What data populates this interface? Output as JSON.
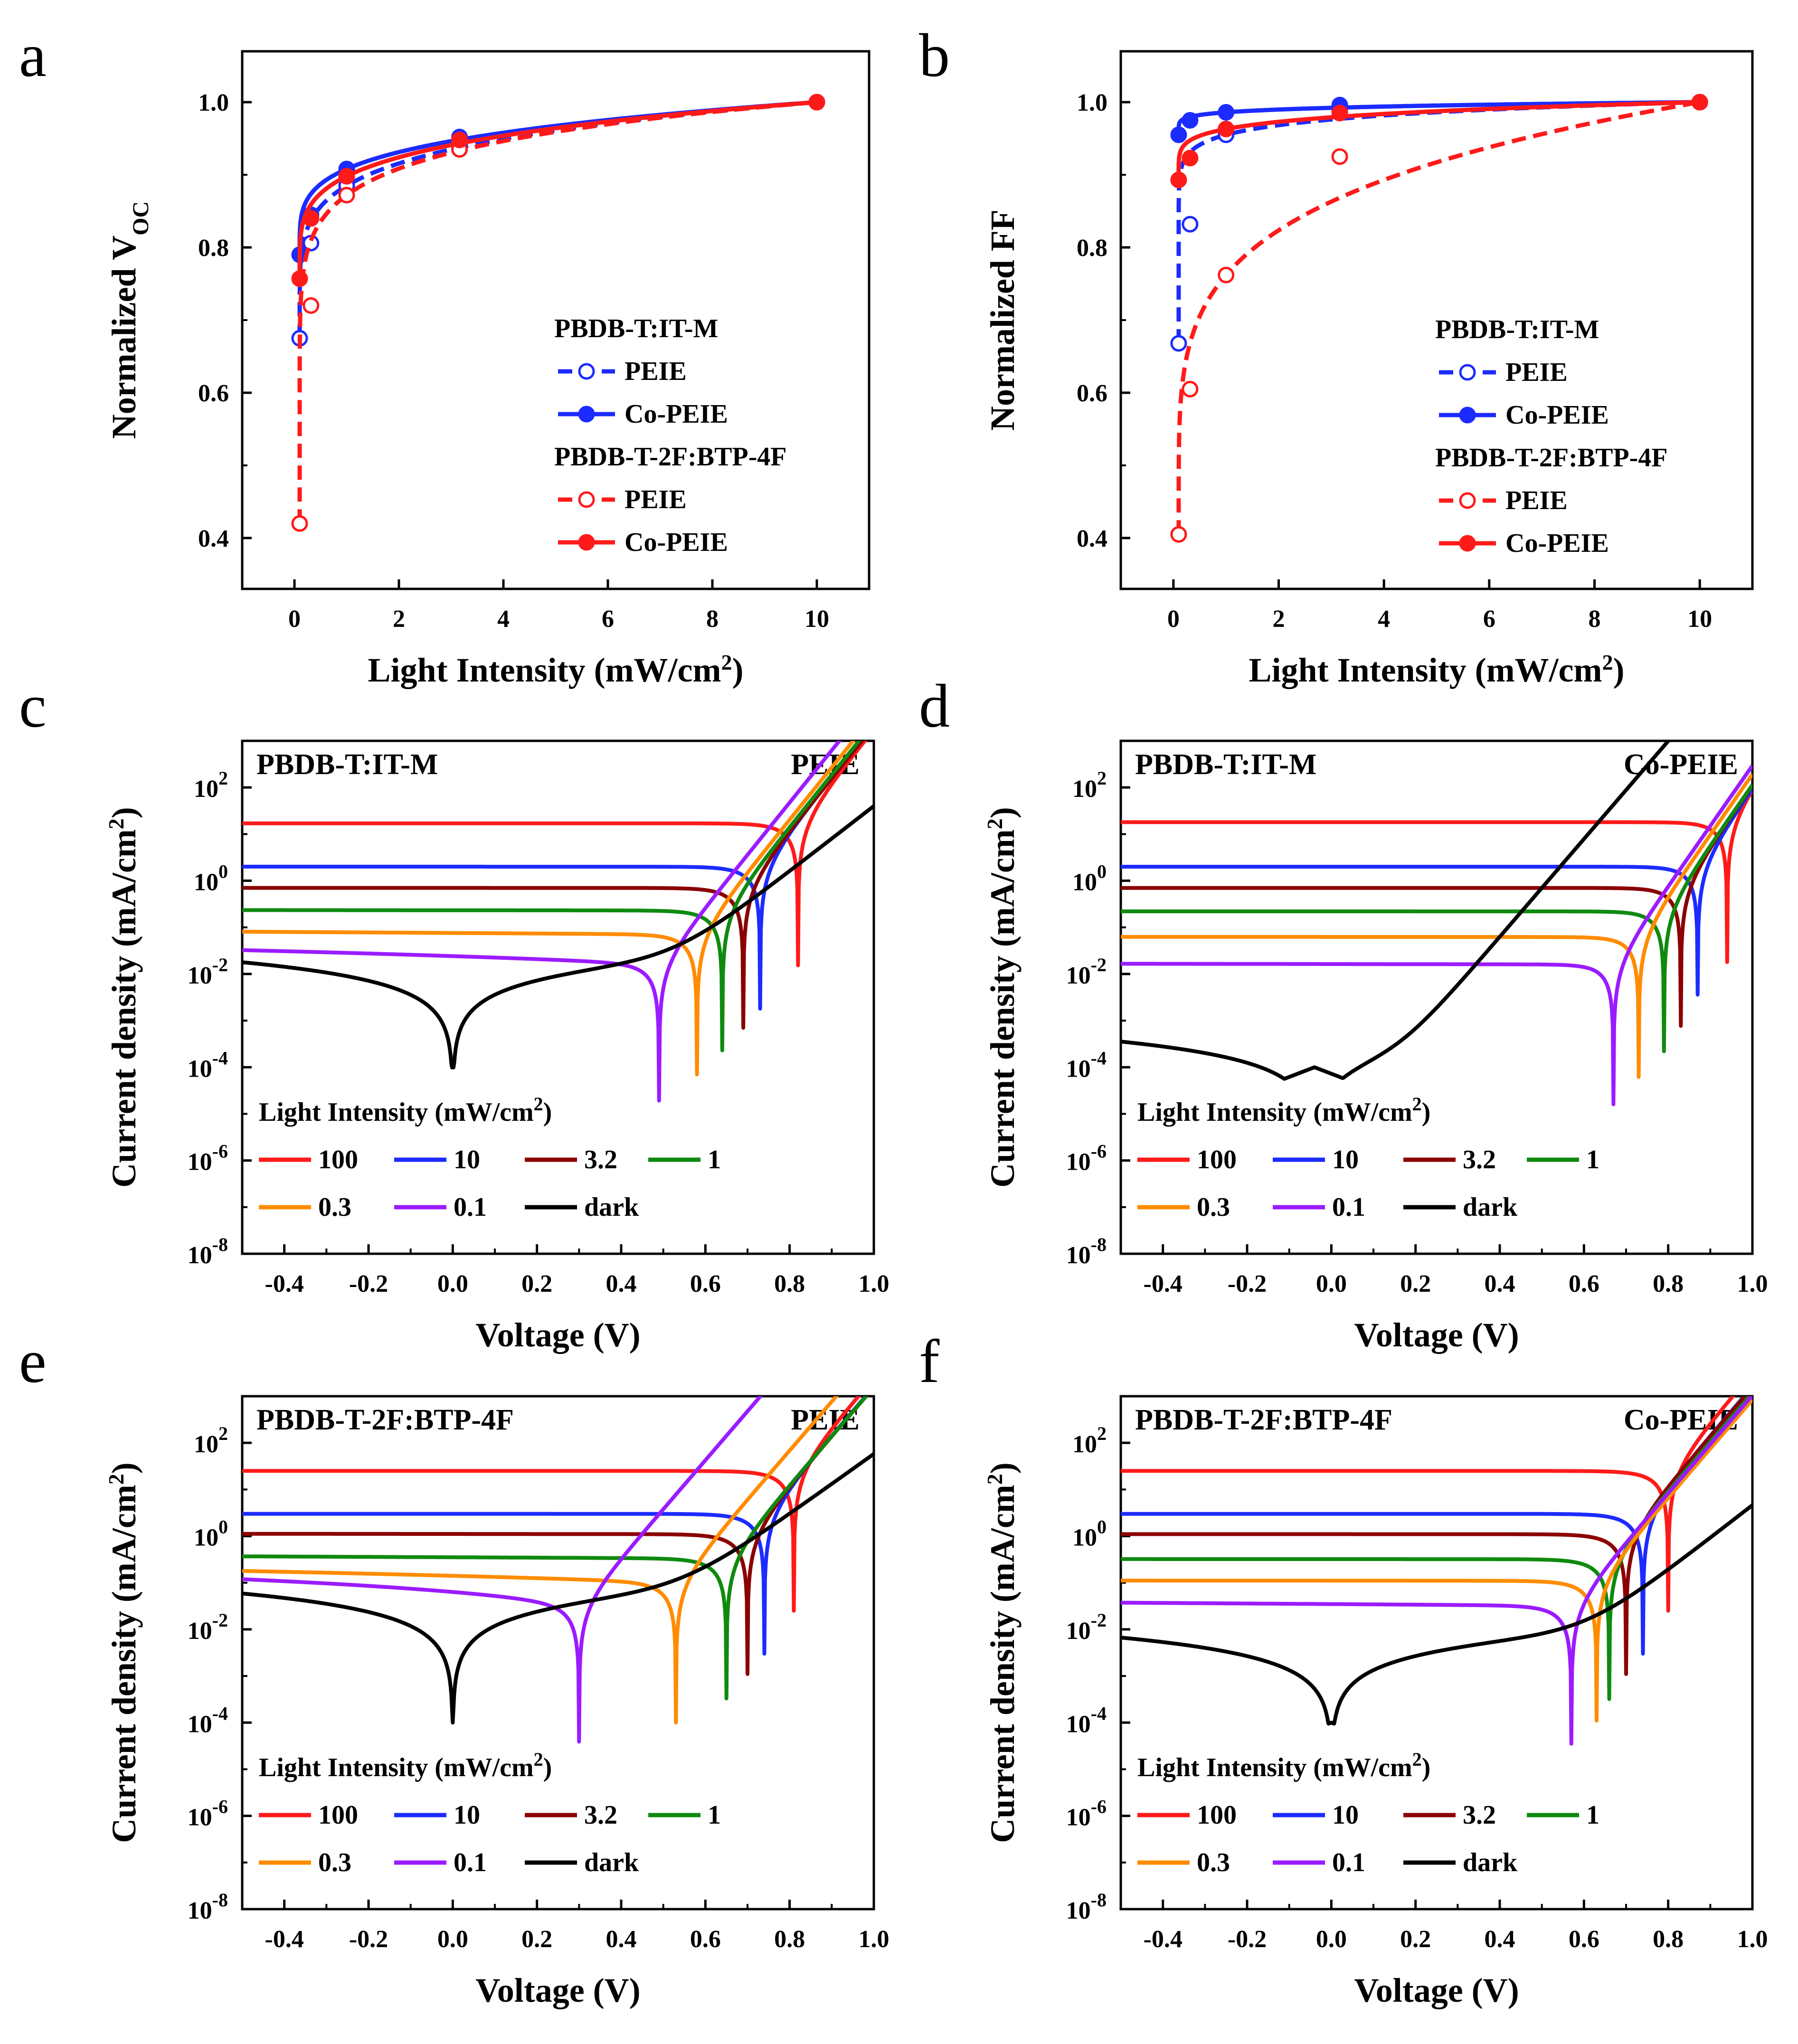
{
  "charts": [
    {
      "id": "a",
      "kind": "norm",
      "type": "line",
      "panel_letter": "a",
      "xlabel": "Light Intensity (mW/cm",
      "xlabel_sup": "2",
      "xlabel_end": ")",
      "ylabel": "Normalized V",
      "ylabel_sub": "OC",
      "xlim": [
        -1,
        11
      ],
      "ylim": [
        0.33,
        1.07
      ],
      "xticks": [
        0,
        2,
        4,
        6,
        8,
        10
      ],
      "yticks": [
        0.4,
        0.6,
        0.8,
        1.0
      ],
      "yticklabels": [
        "0.4",
        "0.6",
        "0.8",
        "1.0"
      ],
      "legend": {
        "groups": [
          {
            "title": "PBDB-T:IT-M",
            "entries": [
              {
                "label": "PEIE",
                "series": 0
              },
              {
                "label": "Co-PEIE",
                "series": 1
              }
            ]
          },
          {
            "title": "PBDB-T-2F:BTP-4F",
            "entries": [
              {
                "label": "PEIE",
                "series": 2
              },
              {
                "label": "Co-PEIE",
                "series": 3
              }
            ]
          }
        ]
      },
      "series": [
        {
          "name": "PBDB-T:IT-M PEIE",
          "color": "#1c2bff",
          "dashed": true,
          "filled": false,
          "x": [
            0.1,
            0.316,
            1,
            3.16,
            10
          ],
          "y": [
            0.675,
            0.806,
            0.885,
            0.935,
            1.0
          ]
        },
        {
          "name": "PBDB-T:IT-M Co-PEIE",
          "color": "#1c2bff",
          "dashed": false,
          "filled": true,
          "x": [
            0.1,
            0.316,
            1,
            3.16,
            10
          ],
          "y": [
            0.79,
            0.845,
            0.908,
            0.952,
            1.0
          ]
        },
        {
          "name": "PBDB-T-2F:BTP-4F PEIE",
          "color": "#ff1a1a",
          "dashed": true,
          "filled": false,
          "x": [
            0.1,
            0.316,
            1,
            3.16,
            10
          ],
          "y": [
            0.42,
            0.72,
            0.872,
            0.935,
            1.0
          ]
        },
        {
          "name": "PBDB-T-2F:BTP-4F Co-PEIE",
          "color": "#ff1a1a",
          "dashed": false,
          "filled": true,
          "x": [
            0.1,
            0.316,
            1,
            3.16,
            10
          ],
          "y": [
            0.757,
            0.84,
            0.898,
            0.948,
            1.0
          ]
        }
      ]
    },
    {
      "id": "b",
      "kind": "norm",
      "type": "line",
      "panel_letter": "b",
      "xlabel": "Light Intensity (mW/cm",
      "xlabel_sup": "2",
      "xlabel_end": ")",
      "ylabel": "Normalized FF",
      "ylabel_sub": "",
      "xlim": [
        -1,
        11
      ],
      "ylim": [
        0.33,
        1.07
      ],
      "xticks": [
        0,
        2,
        4,
        6,
        8,
        10
      ],
      "yticks": [
        0.4,
        0.6,
        0.8,
        1.0
      ],
      "yticklabels": [
        "0.4",
        "0.6",
        "0.8",
        "1.0"
      ],
      "legend": {
        "groups": [
          {
            "title": "PBDB-T:IT-M",
            "entries": [
              {
                "label": "PEIE",
                "series": 0
              },
              {
                "label": "Co-PEIE",
                "series": 1
              }
            ]
          },
          {
            "title": "PBDB-T-2F:BTP-4F",
            "entries": [
              {
                "label": "PEIE",
                "series": 2
              },
              {
                "label": "Co-PEIE",
                "series": 3
              }
            ]
          }
        ]
      },
      "series": [
        {
          "name": "PBDB-T:IT-M PEIE",
          "color": "#1c2bff",
          "dashed": true,
          "filled": false,
          "x": [
            0.1,
            0.316,
            1,
            3.16,
            10
          ],
          "y": [
            0.668,
            0.832,
            0.955,
            0.99,
            1.0
          ]
        },
        {
          "name": "PBDB-T:IT-M Co-PEIE",
          "color": "#1c2bff",
          "dashed": false,
          "filled": true,
          "x": [
            0.1,
            0.316,
            1,
            3.16,
            10
          ],
          "y": [
            0.955,
            0.975,
            0.986,
            0.996,
            1.0
          ]
        },
        {
          "name": "PBDB-T-2F:BTP-4F PEIE",
          "color": "#ff1a1a",
          "dashed": true,
          "filled": false,
          "x": [
            0.1,
            0.316,
            1,
            3.16,
            10
          ],
          "y": [
            0.405,
            0.605,
            0.762,
            0.925,
            1.0
          ]
        },
        {
          "name": "PBDB-T-2F:BTP-4F Co-PEIE",
          "color": "#ff1a1a",
          "dashed": false,
          "filled": true,
          "x": [
            0.1,
            0.316,
            1,
            3.16,
            10
          ],
          "y": [
            0.893,
            0.923,
            0.963,
            0.985,
            1.0
          ]
        }
      ]
    },
    {
      "id": "c",
      "kind": "jv",
      "type": "line",
      "panel_letter": "c",
      "material": "PBDB-T:IT-M",
      "etl": "PEIE",
      "xlabel": "Voltage (V)",
      "ylabel": "Current density (mA/cm",
      "ylabel_sup": "2",
      "ylabel_end": ")",
      "xlim": [
        -0.5,
        1.0
      ],
      "ylog_range": [
        -8,
        3
      ],
      "xticks": [
        -0.4,
        -0.2,
        0.0,
        0.2,
        0.4,
        0.6,
        0.8,
        1.0
      ],
      "xticklabels": [
        "-0.4",
        "-0.2",
        "0.0",
        "0.2",
        "0.4",
        "0.6",
        "0.8",
        "1.0"
      ],
      "ytick_exponents": [
        "-8",
        "-6",
        "-4",
        "-2",
        "0",
        "2"
      ],
      "legend_title": "Light Intensity (mW/cm",
      "legend_title_sup": "2",
      "legend_title_end": ")",
      "series": [
        {
          "name": "100",
          "color": "#ff1a1a",
          "jsc": 17,
          "voc": 0.82,
          "n": 1.5,
          "j0": 2.2e-12,
          "rsh": 350,
          "dip": 0.9
        },
        {
          "name": "10",
          "color": "#1c2bff",
          "jsc": 2.0,
          "voc": 0.73,
          "n": 1.5,
          "j0": 2.2e-12,
          "rsh": 350,
          "dip": 0.9
        },
        {
          "name": "3.2",
          "color": "#8b0000",
          "jsc": 0.7,
          "voc": 0.69,
          "n": 1.5,
          "j0": 2.2e-12,
          "rsh": 350,
          "dip": 1.0
        },
        {
          "name": "1",
          "color": "#0f8a0f",
          "jsc": 0.23,
          "voc": 0.64,
          "n": 1.5,
          "j0": 2.2e-12,
          "rsh": 250,
          "dip": 1.0
        },
        {
          "name": "0.3",
          "color": "#ff8c00",
          "jsc": 0.07,
          "voc": 0.58,
          "n": 1.5,
          "j0": 2.2e-12,
          "rsh": 100,
          "dip": 1.0
        },
        {
          "name": "0.1",
          "color": "#9b1bff",
          "jsc": 0.016,
          "voc": 0.49,
          "n": 1.5,
          "j0": 2.2e-12,
          "rsh": 60,
          "dip": 1.2
        },
        {
          "name": "dark",
          "color": "#000000",
          "jsc": 0,
          "voc": 0.0,
          "n": 2.4,
          "j0": 4e-06,
          "rsh": 28,
          "dip": 1.0
        }
      ]
    },
    {
      "id": "d",
      "kind": "jv",
      "type": "line",
      "panel_letter": "d",
      "material": "PBDB-T:IT-M",
      "etl": "Co-PEIE",
      "xlabel": "Voltage (V)",
      "ylabel": "Current density (mA/cm",
      "ylabel_sup": "2",
      "ylabel_end": ")",
      "xlim": [
        -0.5,
        1.0
      ],
      "ylog_range": [
        -8,
        3
      ],
      "xticks": [
        -0.4,
        -0.2,
        0.0,
        0.2,
        0.4,
        0.6,
        0.8,
        1.0
      ],
      "xticklabels": [
        "-0.4",
        "-0.2",
        "0.0",
        "0.2",
        "0.4",
        "0.6",
        "0.8",
        "1.0"
      ],
      "ytick_exponents": [
        "-8",
        "-6",
        "-4",
        "-2",
        "0",
        "2"
      ],
      "legend_title": "Light Intensity (mW/cm",
      "legend_title_sup": "2",
      "legend_title_end": ")",
      "series": [
        {
          "name": "100",
          "color": "#ff1a1a",
          "jsc": 18,
          "voc": 0.94,
          "n": 1.3,
          "j0": 2e-15,
          "rsh": 2000,
          "dip": 1.0
        },
        {
          "name": "10",
          "color": "#1c2bff",
          "jsc": 2.0,
          "voc": 0.87,
          "n": 1.3,
          "j0": 2e-15,
          "rsh": 2000,
          "dip": 1.8
        },
        {
          "name": "3.2",
          "color": "#8b0000",
          "jsc": 0.7,
          "voc": 0.83,
          "n": 1.3,
          "j0": 2e-15,
          "rsh": 2000,
          "dip": 1.1
        },
        {
          "name": "1",
          "color": "#0f8a0f",
          "jsc": 0.22,
          "voc": 0.79,
          "n": 1.3,
          "j0": 2e-15,
          "rsh": 2000,
          "dip": 1.0
        },
        {
          "name": "0.3",
          "color": "#ff8c00",
          "jsc": 0.062,
          "voc": 0.73,
          "n": 1.3,
          "j0": 2e-15,
          "rsh": 2000,
          "dip": 1.0
        },
        {
          "name": "0.1",
          "color": "#9b1bff",
          "jsc": 0.016,
          "voc": 0.67,
          "n": 1.3,
          "j0": 2e-15,
          "rsh": 2000,
          "dip": 1.0
        },
        {
          "name": "dark",
          "color": "#000000",
          "jsc": 0,
          "voc": -0.04,
          "n": 1.6,
          "j0": 1.5e-06,
          "rsh": 1300,
          "dip": 1.0
        }
      ]
    },
    {
      "id": "e",
      "kind": "jv",
      "type": "line",
      "panel_letter": "e",
      "material": "PBDB-T-2F:BTP-4F",
      "etl": "PEIE",
      "xlabel": "Voltage (V)",
      "ylabel": "Current density (mA/cm",
      "ylabel_sup": "2",
      "ylabel_end": ")",
      "xlim": [
        -0.5,
        1.0
      ],
      "ylog_range": [
        -8,
        3
      ],
      "xticks": [
        -0.4,
        -0.2,
        0.0,
        0.2,
        0.4,
        0.6,
        0.8,
        1.0
      ],
      "xticklabels": [
        "-0.4",
        "-0.2",
        "0.0",
        "0.2",
        "0.4",
        "0.6",
        "0.8",
        "1.0"
      ],
      "ytick_exponents": [
        "-8",
        "-6",
        "-4",
        "-2",
        "0",
        "2"
      ],
      "legend_title": "Light Intensity (mW/cm",
      "legend_title_sup": "2",
      "legend_title_end": ")",
      "series": [
        {
          "name": "100",
          "color": "#ff1a1a",
          "jsc": 25,
          "voc": 0.81,
          "n": 1.6,
          "j0": 3e-11,
          "rsh": 140,
          "dip": 1.0
        },
        {
          "name": "10",
          "color": "#1c2bff",
          "jsc": 3.0,
          "voc": 0.74,
          "n": 1.6,
          "j0": 3e-11,
          "rsh": 140,
          "dip": 1.0
        },
        {
          "name": "3.2",
          "color": "#8b0000",
          "jsc": 1.1,
          "voc": 0.7,
          "n": 1.6,
          "j0": 3e-11,
          "rsh": 60,
          "dip": 1.0
        },
        {
          "name": "1",
          "color": "#0f8a0f",
          "jsc": 0.33,
          "voc": 0.65,
          "n": 1.6,
          "j0": 3e-11,
          "rsh": 30,
          "dip": 1.0
        },
        {
          "name": "0.3",
          "color": "#ff8c00",
          "jsc": 0.1,
          "voc": 0.53,
          "n": 1.6,
          "j0": 3e-11,
          "rsh": 13,
          "dip": 1.0
        },
        {
          "name": "0.1",
          "color": "#9b1bff",
          "jsc": 0.03,
          "voc": 0.3,
          "n": 1.6,
          "j0": 3e-11,
          "rsh": 9,
          "dip": 1.3
        },
        {
          "name": "dark",
          "color": "#000000",
          "jsc": 0,
          "voc": 0.0,
          "n": 2.6,
          "j0": 2e-05,
          "rsh": 8.5,
          "dip": 1.0
        }
      ]
    },
    {
      "id": "f",
      "kind": "jv",
      "type": "line",
      "panel_letter": "f",
      "material": "PBDB-T-2F:BTP-4F",
      "etl": "Co-PEIE",
      "xlabel": "Voltage (V)",
      "ylabel": "Current density (mA/cm",
      "ylabel_sup": "2",
      "ylabel_end": ")",
      "xlim": [
        -0.5,
        1.0
      ],
      "ylog_range": [
        -8,
        3
      ],
      "xticks": [
        -0.4,
        -0.2,
        0.0,
        0.2,
        0.4,
        0.6,
        0.8,
        1.0
      ],
      "xticklabels": [
        "-0.4",
        "-0.2",
        "0.0",
        "0.2",
        "0.4",
        "0.6",
        "0.8",
        "1.0"
      ],
      "ytick_exponents": [
        "-8",
        "-6",
        "-4",
        "-2",
        "0",
        "2"
      ],
      "legend_title": "Light Intensity (mW/cm",
      "legend_title_sup": "2",
      "legend_title_end": ")",
      "series": [
        {
          "name": "100",
          "color": "#ff1a1a",
          "jsc": 25,
          "voc": 0.8,
          "n": 1.6,
          "j0": 2.2e-11,
          "rsh": 800,
          "dip": 1.0
        },
        {
          "name": "10",
          "color": "#1c2bff",
          "jsc": 3.0,
          "voc": 0.74,
          "n": 1.6,
          "j0": 2.2e-11,
          "rsh": 800,
          "dip": 1.0
        },
        {
          "name": "3.2",
          "color": "#8b0000",
          "jsc": 1.1,
          "voc": 0.7,
          "n": 1.6,
          "j0": 2.2e-11,
          "rsh": 800,
          "dip": 1.0
        },
        {
          "name": "1",
          "color": "#0f8a0f",
          "jsc": 0.32,
          "voc": 0.66,
          "n": 1.6,
          "j0": 2.2e-11,
          "rsh": 800,
          "dip": 1.0
        },
        {
          "name": "0.3",
          "color": "#ff8c00",
          "jsc": 0.11,
          "voc": 0.63,
          "n": 1.6,
          "j0": 2.2e-11,
          "rsh": 800,
          "dip": 1.0
        },
        {
          "name": "0.1",
          "color": "#9b1bff",
          "jsc": 0.032,
          "voc": 0.57,
          "n": 1.6,
          "j0": 2.2e-11,
          "rsh": 200,
          "dip": 1.1
        },
        {
          "name": "dark",
          "color": "#000000",
          "jsc": 0,
          "voc": 0.0,
          "n": 2.4,
          "j0": 4.6e-07,
          "rsh": 75,
          "dip": 1.0
        }
      ]
    }
  ]
}
